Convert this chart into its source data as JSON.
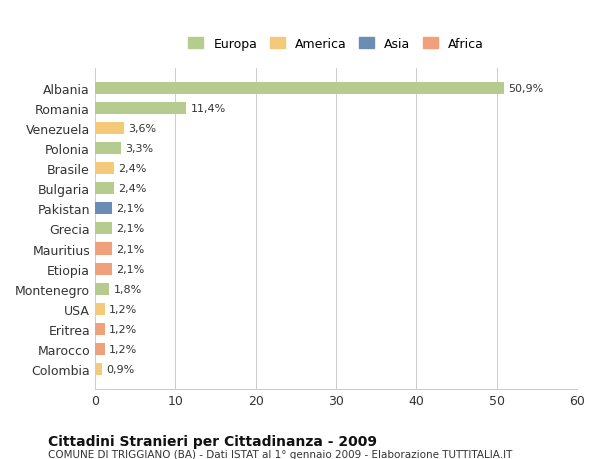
{
  "categories": [
    "Albania",
    "Romania",
    "Venezuela",
    "Polonia",
    "Brasile",
    "Bulgaria",
    "Pakistan",
    "Grecia",
    "Mauritius",
    "Etiopia",
    "Montenegro",
    "USA",
    "Eritrea",
    "Marocco",
    "Colombia"
  ],
  "values": [
    50.9,
    11.4,
    3.6,
    3.3,
    2.4,
    2.4,
    2.1,
    2.1,
    2.1,
    2.1,
    1.8,
    1.2,
    1.2,
    1.2,
    0.9
  ],
  "labels": [
    "50,9%",
    "11,4%",
    "3,6%",
    "3,3%",
    "2,4%",
    "2,4%",
    "2,1%",
    "2,1%",
    "2,1%",
    "2,1%",
    "1,8%",
    "1,2%",
    "1,2%",
    "1,2%",
    "0,9%"
  ],
  "colors": [
    "#b5cc8e",
    "#b5cc8e",
    "#f5c97a",
    "#b5cc8e",
    "#f5c97a",
    "#b5cc8e",
    "#6b8db5",
    "#b5cc8e",
    "#f0a07a",
    "#f0a07a",
    "#b5cc8e",
    "#f5c97a",
    "#f0a07a",
    "#f0a07a",
    "#f5c97a"
  ],
  "legend": {
    "Europa": "#b5cc8e",
    "America": "#f5c97a",
    "Asia": "#6b8db5",
    "Africa": "#f0a07a"
  },
  "xlim": [
    0,
    60
  ],
  "xticks": [
    0,
    10,
    20,
    30,
    40,
    50,
    60
  ],
  "title": "Cittadini Stranieri per Cittadinanza - 2009",
  "subtitle": "COMUNE DI TRIGGIANO (BA) - Dati ISTAT al 1° gennaio 2009 - Elaborazione TUTTITALIA.IT",
  "background_color": "#ffffff",
  "grid_color": "#cccccc",
  "bar_height": 0.6
}
